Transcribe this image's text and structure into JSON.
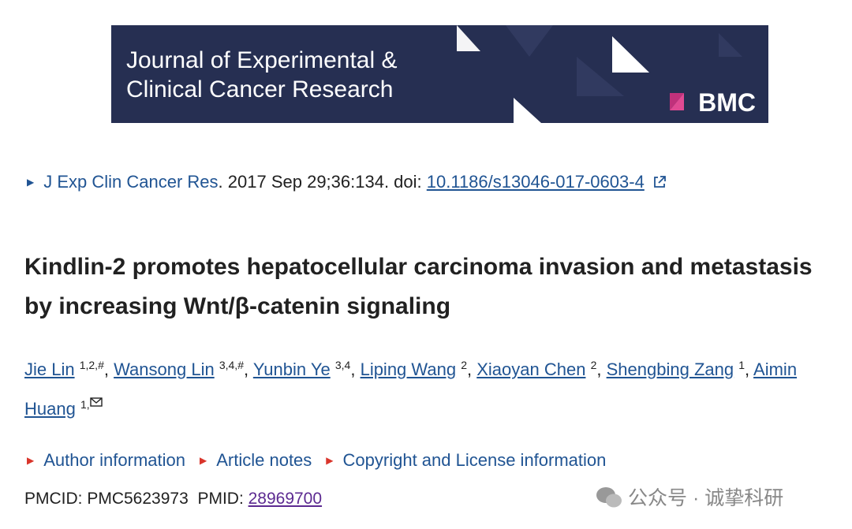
{
  "banner": {
    "title_lines": [
      "Journal of Experimental &",
      "Clinical Cancer Research"
    ],
    "publisher": "BMC"
  },
  "citation": {
    "journal": "J Exp Clin Cancer Res",
    "details": ". 2017 Sep 29;36:134. doi: ",
    "doi": "10.1186/s13046-017-0603-4"
  },
  "title": "Kindlin-2 promotes hepatocellular carcinoma invasion and metastasis by increasing Wnt/β-catenin signaling",
  "authors": [
    {
      "name": "Jie Lin",
      "sup": "1,2,#",
      "sep": ","
    },
    {
      "name": "Wansong Lin",
      "sup": "3,4,#",
      "sep": ","
    },
    {
      "name": "Yunbin Ye",
      "sup": "3,4",
      "sep": ","
    },
    {
      "name": "Liping Wang",
      "sup": "2",
      "sep": ","
    },
    {
      "name": "Xiaoyan Chen",
      "sup": "2",
      "sep": ","
    },
    {
      "name": "Shengbing Zang",
      "sup": "1",
      "sep": ","
    },
    {
      "name": "Aimin Huang",
      "sup": "1,"
    }
  ],
  "sections": [
    "Author information",
    "Article notes",
    "Copyright and License information"
  ],
  "ids": {
    "pmcid": "PMCID: PMC5623973",
    "pmid_label": "PMID: ",
    "pmid": "28969700"
  },
  "watermark": "公众号 · 诚挚科研"
}
